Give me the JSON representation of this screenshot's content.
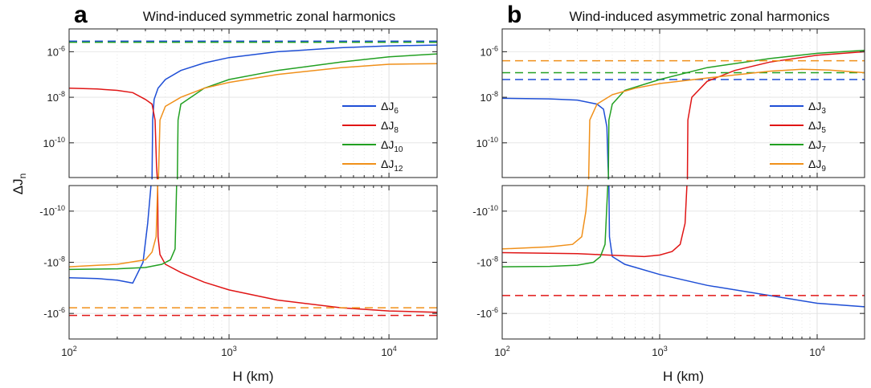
{
  "chart_data": [
    {
      "id": "a",
      "type": "line",
      "panel_letter": "a",
      "title": "Wind-induced symmetric zonal harmonics",
      "xlabel": "H (km)",
      "ylabel_main": "ΔJ",
      "ylabel_sub": "n",
      "x_scale": "log",
      "xlim": [
        100,
        20000
      ],
      "x_ticks": [
        {
          "v": 100,
          "base": "10",
          "exp": "2"
        },
        {
          "v": 1000,
          "base": "10",
          "exp": "3"
        },
        {
          "v": 10000,
          "base": "10",
          "exp": "4"
        }
      ],
      "upper": {
        "y_scale": "log",
        "ylim": [
          3e-12,
          1e-05
        ],
        "y_ticks": [
          {
            "v": 1e-10,
            "base": "10",
            "exp": "-10"
          },
          {
            "v": 1e-08,
            "base": "10",
            "exp": "-8"
          },
          {
            "v": 1e-06,
            "base": "10",
            "exp": "-6"
          }
        ]
      },
      "lower": {
        "y_scale": "log-negative",
        "ylim": [
          -1e-11,
          -1e-05
        ],
        "y_ticks": [
          {
            "v": -1e-10,
            "base": "-10",
            "exp": "-10"
          },
          {
            "v": -1e-08,
            "base": "-10",
            "exp": "-8"
          },
          {
            "v": -1e-06,
            "base": "-10",
            "exp": "-6"
          }
        ]
      },
      "legend_position": "right-middle",
      "grid": true,
      "series": [
        {
          "name": "ΔJ",
          "sub": "6",
          "color": "#1f4fd6",
          "curve": [
            [
              100,
              -4e-08
            ],
            [
              150,
              -4.3e-08
            ],
            [
              200,
              -5e-08
            ],
            [
              250,
              -6.5e-08
            ],
            [
              290,
              -1e-08
            ],
            [
              310,
              -3e-10
            ],
            [
              325,
              -1e-11
            ],
            [
              330,
              2.5e-12
            ],
            [
              333,
              1e-09
            ],
            [
              340,
              8e-09
            ],
            [
              360,
              2.5e-08
            ],
            [
              400,
              6e-08
            ],
            [
              500,
              1.5e-07
            ],
            [
              700,
              3.2e-07
            ],
            [
              1000,
              5.5e-07
            ],
            [
              2000,
              1e-06
            ],
            [
              5000,
              1.5e-06
            ],
            [
              10000,
              1.8e-06
            ],
            [
              20000,
              1.95e-06
            ]
          ],
          "converged": 2.9e-06
        },
        {
          "name": "ΔJ",
          "sub": "8",
          "color": "#e01515",
          "curve": [
            [
              100,
              2.5e-08
            ],
            [
              150,
              2.3e-08
            ],
            [
              200,
              2e-08
            ],
            [
              250,
              1.6e-08
            ],
            [
              300,
              8e-09
            ],
            [
              330,
              5e-09
            ],
            [
              345,
              1e-09
            ],
            [
              352,
              1e-11
            ],
            [
              356,
              2.5e-12
            ],
            [
              358,
              -1e-11
            ],
            [
              360,
              -1e-09
            ],
            [
              370,
              -5e-09
            ],
            [
              400,
              -1.2e-08
            ],
            [
              500,
              -2.5e-08
            ],
            [
              700,
              -6e-08
            ],
            [
              1000,
              -1.2e-07
            ],
            [
              2000,
              -3e-07
            ],
            [
              5000,
              -6e-07
            ],
            [
              10000,
              -8e-07
            ],
            [
              20000,
              -9e-07
            ]
          ],
          "converged": -1.2e-06
        },
        {
          "name": "ΔJ",
          "sub": "10",
          "color": "#22a022",
          "curve": [
            [
              100,
              -1.9e-08
            ],
            [
              200,
              -1.8e-08
            ],
            [
              300,
              -1.6e-08
            ],
            [
              380,
              -1.2e-08
            ],
            [
              430,
              -8e-09
            ],
            [
              460,
              -3e-09
            ],
            [
              470,
              -1e-11
            ],
            [
              475,
              2.5e-12
            ],
            [
              480,
              1e-09
            ],
            [
              500,
              5e-09
            ],
            [
              700,
              2.5e-08
            ],
            [
              1000,
              6e-08
            ],
            [
              2000,
              1.5e-07
            ],
            [
              5000,
              3.5e-07
            ],
            [
              10000,
              6e-07
            ],
            [
              20000,
              8e-07
            ]
          ],
          "converged": 2.6e-06
        },
        {
          "name": "ΔJ",
          "sub": "12",
          "color": "#f0901a",
          "curve": [
            [
              100,
              -1.5e-08
            ],
            [
              200,
              -1.2e-08
            ],
            [
              300,
              -8e-09
            ],
            [
              330,
              -4e-09
            ],
            [
              350,
              -1e-09
            ],
            [
              358,
              -1e-11
            ],
            [
              362,
              2.5e-12
            ],
            [
              370,
              1e-09
            ],
            [
              400,
              4e-09
            ],
            [
              500,
              1e-08
            ],
            [
              700,
              2.5e-08
            ],
            [
              1000,
              4.5e-08
            ],
            [
              2000,
              1e-07
            ],
            [
              5000,
              2e-07
            ],
            [
              10000,
              2.8e-07
            ],
            [
              20000,
              3e-07
            ]
          ],
          "converged": -6e-07
        }
      ]
    },
    {
      "id": "b",
      "type": "line",
      "panel_letter": "b",
      "title": "Wind-induced asymmetric zonal harmonics",
      "xlabel": "H (km)",
      "x_scale": "log",
      "xlim": [
        100,
        20000
      ],
      "x_ticks": [
        {
          "v": 100,
          "base": "10",
          "exp": "2"
        },
        {
          "v": 1000,
          "base": "10",
          "exp": "3"
        },
        {
          "v": 10000,
          "base": "10",
          "exp": "4"
        }
      ],
      "upper": {
        "y_scale": "log",
        "ylim": [
          3e-12,
          1e-05
        ],
        "y_ticks": [
          {
            "v": 1e-10,
            "base": "10",
            "exp": "-10"
          },
          {
            "v": 1e-08,
            "base": "10",
            "exp": "-8"
          },
          {
            "v": 1e-06,
            "base": "10",
            "exp": "-6"
          }
        ]
      },
      "lower": {
        "y_scale": "log-negative",
        "ylim": [
          -1e-11,
          -1e-05
        ],
        "y_ticks": [
          {
            "v": -1e-10,
            "base": "-10",
            "exp": "-10"
          },
          {
            "v": -1e-08,
            "base": "-10",
            "exp": "-8"
          },
          {
            "v": -1e-06,
            "base": "-10",
            "exp": "-6"
          }
        ]
      },
      "legend_position": "right-middle",
      "grid": true,
      "series": [
        {
          "name": "ΔJ",
          "sub": "3",
          "color": "#1f4fd6",
          "curve": [
            [
              100,
              9e-09
            ],
            [
              200,
              8.5e-09
            ],
            [
              300,
              7.5e-09
            ],
            [
              400,
              5e-09
            ],
            [
              440,
              3e-09
            ],
            [
              462,
              5e-10
            ],
            [
              470,
              1e-11
            ],
            [
              474,
              2.5e-12
            ],
            [
              476,
              -1e-11
            ],
            [
              480,
              -1e-09
            ],
            [
              500,
              -6e-09
            ],
            [
              600,
              -1.2e-08
            ],
            [
              1000,
              -3e-08
            ],
            [
              2000,
              -8e-08
            ],
            [
              5000,
              -2e-07
            ],
            [
              10000,
              -4e-07
            ],
            [
              20000,
              -5.5e-07
            ]
          ],
          "converged": 6e-08
        },
        {
          "name": "ΔJ",
          "sub": "5",
          "color": "#e01515",
          "curve": [
            [
              100,
              -4.2e-09
            ],
            [
              300,
              -4.6e-09
            ],
            [
              500,
              -5.3e-09
            ],
            [
              800,
              -6e-09
            ],
            [
              1000,
              -5.2e-09
            ],
            [
              1200,
              -3.8e-09
            ],
            [
              1350,
              -2e-09
            ],
            [
              1450,
              -3e-10
            ],
            [
              1490,
              -1e-11
            ],
            [
              1500,
              2.5e-12
            ],
            [
              1510,
              1e-09
            ],
            [
              1600,
              1e-08
            ],
            [
              2000,
              5e-08
            ],
            [
              3000,
              1.5e-07
            ],
            [
              5000,
              3.5e-07
            ],
            [
              10000,
              7e-07
            ],
            [
              20000,
              1e-06
            ]
          ],
          "converged": -2e-07
        },
        {
          "name": "ΔJ",
          "sub": "7",
          "color": "#22a022",
          "curve": [
            [
              100,
              -1.5e-08
            ],
            [
              200,
              -1.45e-08
            ],
            [
              300,
              -1.3e-08
            ],
            [
              380,
              -1e-08
            ],
            [
              420,
              -6e-09
            ],
            [
              450,
              -2e-09
            ],
            [
              468,
              -1e-11
            ],
            [
              472,
              2.5e-12
            ],
            [
              476,
              1e-09
            ],
            [
              500,
              5e-09
            ],
            [
              600,
              2e-08
            ],
            [
              1000,
              6e-08
            ],
            [
              2000,
              2e-07
            ],
            [
              5000,
              5e-07
            ],
            [
              10000,
              8.5e-07
            ],
            [
              20000,
              1.15e-06
            ]
          ],
          "converged": 1.2e-07
        },
        {
          "name": "ΔJ",
          "sub": "9",
          "color": "#f0901a",
          "curve": [
            [
              100,
              -3e-09
            ],
            [
              200,
              -2.5e-09
            ],
            [
              280,
              -2e-09
            ],
            [
              320,
              -1e-09
            ],
            [
              340,
              -1e-10
            ],
            [
              350,
              -1e-11
            ],
            [
              354,
              2.5e-12
            ],
            [
              360,
              1e-09
            ],
            [
              400,
              5e-09
            ],
            [
              500,
              1.3e-08
            ],
            [
              700,
              2.5e-08
            ],
            [
              1000,
              4e-08
            ],
            [
              2000,
              7e-08
            ],
            [
              5000,
              1.4e-07
            ],
            [
              8000,
              1.7e-07
            ],
            [
              12000,
              1.55e-07
            ],
            [
              20000,
              1.2e-07
            ]
          ],
          "converged": 4e-07
        }
      ]
    }
  ]
}
